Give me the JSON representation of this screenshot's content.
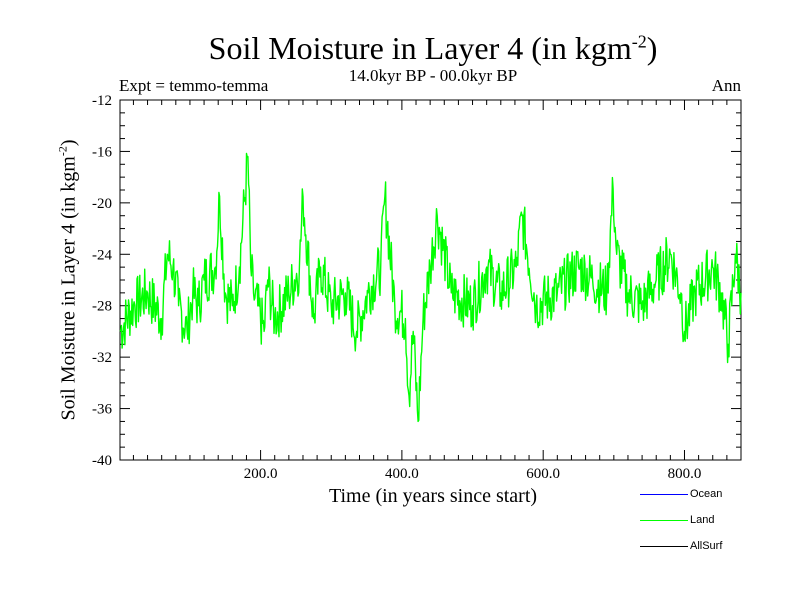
{
  "title": {
    "main": "Soil Moisture in Layer 4 (in kgm",
    "sup": "-2",
    "close": ")"
  },
  "subtitle": "14.0kyr BP - 00.0kyr BP",
  "expt_label": "Expt = temmo-temma",
  "season_label": "Ann",
  "ylabel": {
    "main": "Soil Moisture in Layer 4 (in kgm",
    "sup": "-2",
    "close": ")"
  },
  "xlabel": "Time (in years since start)",
  "legend": [
    {
      "label": "Ocean",
      "color": "#0000ff"
    },
    {
      "label": "Land",
      "color": "#00ff00"
    },
    {
      "label": "AllSurf",
      "color": "#000000"
    }
  ],
  "chart_data": {
    "type": "line",
    "title": "Soil Moisture in Layer 4 (in kgm-2)",
    "subtitle": "14.0kyr BP - 00.0kyr BP",
    "xlabel": "Time (in years since start)",
    "ylabel": "Soil Moisture in Layer 4 (in kgm-2)",
    "xlim": [
      1,
      880
    ],
    "ylim": [
      -40,
      -12
    ],
    "x_ticks": [
      200,
      400,
      600,
      800
    ],
    "x_tick_labels": [
      "200.0",
      "400.0",
      "600.0",
      "800.0"
    ],
    "y_ticks": [
      -40,
      -36,
      -32,
      -28,
      -24,
      -20,
      -16,
      -12
    ],
    "y_tick_labels": [
      "-40",
      "-36",
      "-32",
      "-28",
      "-24",
      "-20",
      "-16",
      "-12"
    ],
    "series": [
      {
        "name": "Land",
        "color": "#00ff00",
        "x": [
          1,
          20,
          40,
          60,
          68,
          76,
          84,
          96,
          104,
          112,
          120,
          136,
          142,
          150,
          160,
          170,
          182,
          186,
          190,
          205,
          210,
          220,
          240,
          255,
          260,
          275,
          285,
          300,
          320,
          336,
          352,
          370,
          376,
          390,
          405,
          410,
          416,
          423,
          430,
          440,
          450,
          470,
          500,
          520,
          540,
          562,
          570,
          590,
          620,
          650,
          670,
          690,
          699,
          704,
          720,
          740,
          760,
          780,
          795,
          800,
          815,
          840,
          852,
          862,
          872,
          880
        ],
        "values": [
          -30,
          -28,
          -27,
          -29,
          -24,
          -25,
          -28,
          -30,
          -27,
          -28,
          -26,
          -25,
          -19.5,
          -27,
          -28,
          -25,
          -16.4,
          -25,
          -27,
          -30,
          -26,
          -29,
          -27,
          -25,
          -19.5,
          -29,
          -25,
          -28,
          -27,
          -30,
          -27,
          -25,
          -19.5,
          -28,
          -29,
          -35,
          -30,
          -37,
          -29,
          -25,
          -21,
          -27,
          -28,
          -25,
          -27,
          -25,
          -21,
          -28,
          -27,
          -25,
          -26,
          -27,
          -18.9,
          -24,
          -27,
          -28,
          -26,
          -24,
          -27,
          -30,
          -27,
          -25,
          -27,
          -31,
          -24,
          -27
        ]
      }
    ],
    "other_series_in_legend": [
      "Ocean",
      "AllSurf"
    ]
  }
}
